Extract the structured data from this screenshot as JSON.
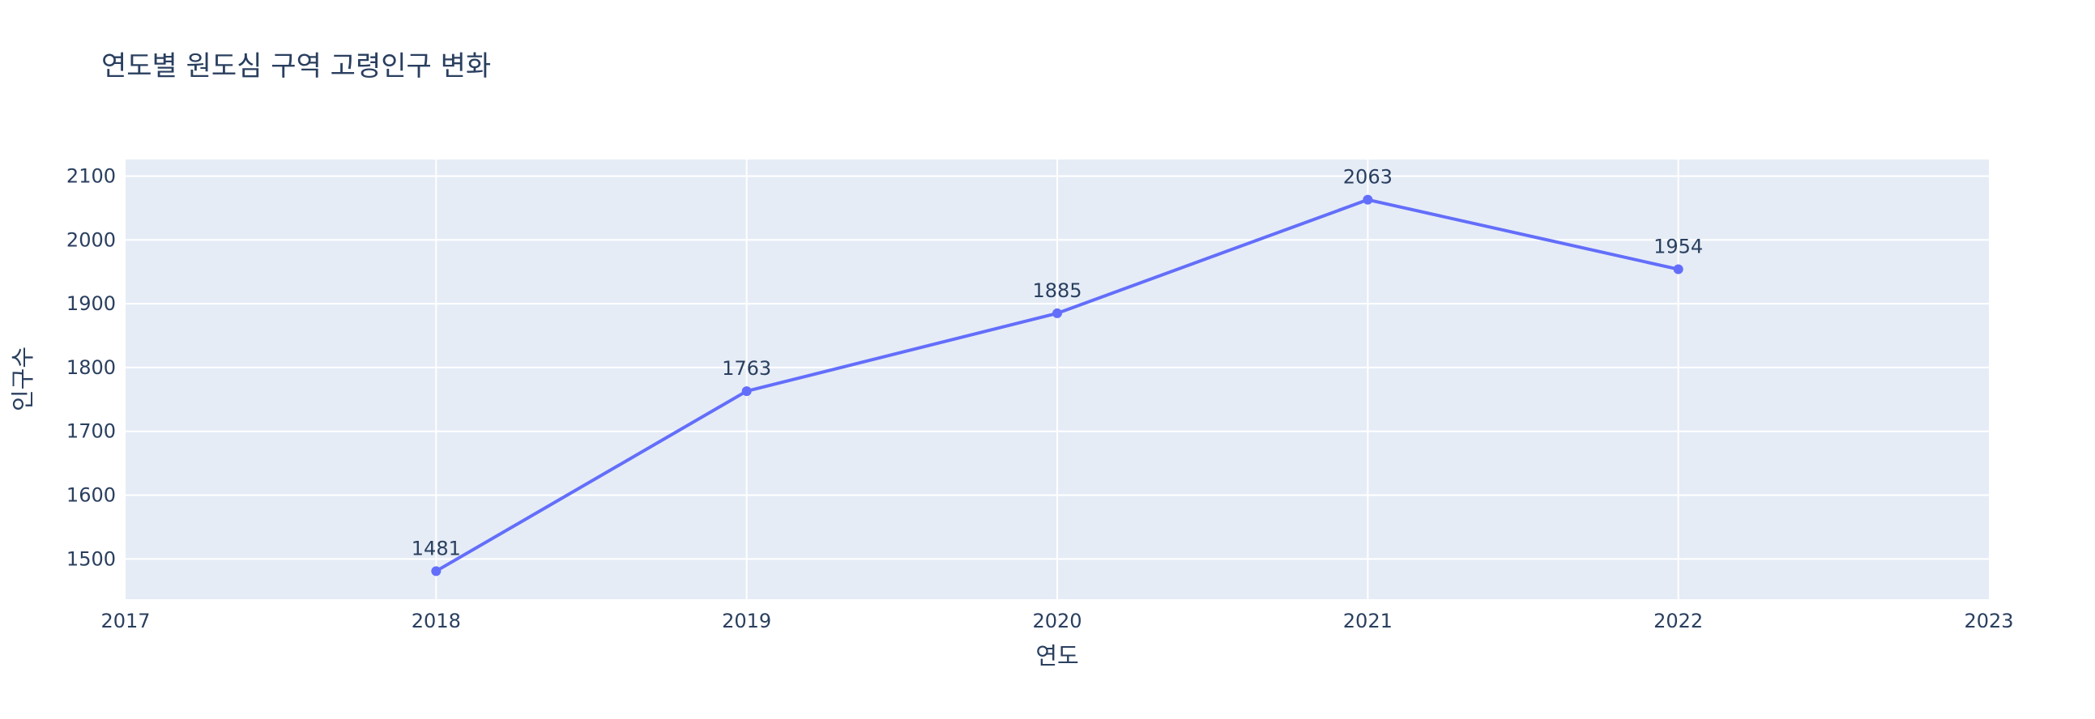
{
  "chart_data": {
    "type": "line",
    "title": "연도별 원도심 구역 고령인구 변화",
    "xlabel": "연도",
    "ylabel": "인구수",
    "x": [
      2018,
      2019,
      2020,
      2021,
      2022
    ],
    "series": [
      {
        "values": [
          1481,
          1763,
          1885,
          2063,
          1954
        ],
        "color": "#636efa"
      }
    ],
    "xlim": [
      2017,
      2023
    ],
    "ylim": [
      1437,
      2126
    ],
    "xticks": [
      2017,
      2018,
      2019,
      2020,
      2021,
      2022,
      2023
    ],
    "yticks": [
      1500,
      1600,
      1700,
      1800,
      1900,
      2000,
      2100
    ],
    "grid": true,
    "plot_background": "#e5ecf6",
    "grid_color": "#ffffff",
    "text_color": "#2a3f5f",
    "data_labels": true
  }
}
